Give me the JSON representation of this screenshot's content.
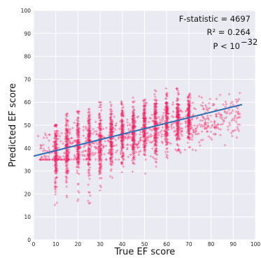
{
  "chart_data": {
    "type": "scatter",
    "xlabel": "True EF score",
    "ylabel": "Predicted EF score",
    "xlim": [
      0,
      100
    ],
    "ylim": [
      0,
      100
    ],
    "xticks": [
      "0",
      "10",
      "20",
      "30",
      "40",
      "50",
      "60",
      "70",
      "80",
      "90",
      "100"
    ],
    "yticks": [
      "0",
      "10",
      "20",
      "30",
      "40",
      "50",
      "60",
      "70",
      "80",
      "90",
      "100"
    ],
    "grid": true,
    "annotations": {
      "f_stat": "F-statistic = 4697",
      "r2": "R² = 0.264",
      "p_base": "P < 10",
      "p_exp": "−32"
    },
    "marker_color": "#ff1a5e",
    "line_color": "#2f6db5",
    "background_color": "#eaeaf2",
    "regression_line": {
      "x": [
        0,
        94
      ],
      "y": [
        36.5,
        59
      ]
    },
    "columns": [
      {
        "x": 10,
        "ymin": 10,
        "ymax": 50,
        "center": 38,
        "spread": 7
      },
      {
        "x": 15,
        "ymin": 15,
        "ymax": 55,
        "center": 40,
        "spread": 7
      },
      {
        "x": 20,
        "ymin": 15,
        "ymax": 56,
        "center": 41,
        "spread": 7
      },
      {
        "x": 25,
        "ymin": 15,
        "ymax": 58,
        "center": 43,
        "spread": 7
      },
      {
        "x": 30,
        "ymin": 20,
        "ymax": 60,
        "center": 44,
        "spread": 7
      },
      {
        "x": 35,
        "ymin": 22,
        "ymax": 60,
        "center": 45,
        "spread": 7
      },
      {
        "x": 40,
        "ymin": 25,
        "ymax": 62,
        "center": 46,
        "spread": 6
      },
      {
        "x": 45,
        "ymin": 25,
        "ymax": 62,
        "center": 48,
        "spread": 6
      },
      {
        "x": 50,
        "ymin": 27,
        "ymax": 64,
        "center": 49,
        "spread": 6
      },
      {
        "x": 55,
        "ymin": 30,
        "ymax": 66,
        "center": 51,
        "spread": 6
      },
      {
        "x": 60,
        "ymin": 35,
        "ymax": 66,
        "center": 52,
        "spread": 6
      },
      {
        "x": 65,
        "ymin": 38,
        "ymax": 66,
        "center": 53,
        "spread": 5
      },
      {
        "x": 70,
        "ymin": 40,
        "ymax": 65,
        "center": 54,
        "spread": 5
      }
    ],
    "scatter_cloud": {
      "xmin": 2,
      "xmax": 93,
      "ymin": 35,
      "ymax": 64
    }
  }
}
